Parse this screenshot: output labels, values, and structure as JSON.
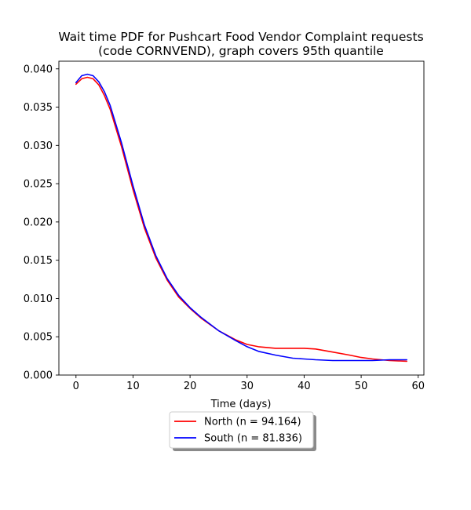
{
  "chart_data": {
    "type": "line",
    "title": "Wait time PDF for Pushcart Food Vendor Complaint  requests",
    "subtitle": "(code CORNVEND), graph covers 95th quantile",
    "xlabel": "Time (days)",
    "ylabel": "",
    "xlim": [
      -3,
      61
    ],
    "ylim": [
      0,
      0.041
    ],
    "xticks": [
      0,
      10,
      20,
      30,
      40,
      50,
      60
    ],
    "xtick_labels": [
      "0",
      "10",
      "20",
      "30",
      "40",
      "50",
      "60"
    ],
    "yticks": [
      0,
      0.005,
      0.01,
      0.015,
      0.02,
      0.025,
      0.03,
      0.035,
      0.04
    ],
    "ytick_labels": [
      "0.000",
      "0.005",
      "0.010",
      "0.015",
      "0.020",
      "0.025",
      "0.030",
      "0.035",
      "0.040"
    ],
    "grid": false,
    "legend_position": "below plot",
    "series": [
      {
        "name": "North (n = 94.164)",
        "color": "#ff0000",
        "x": [
          0,
          1,
          2,
          3,
          4,
          5,
          6,
          8,
          10,
          12,
          14,
          16,
          18,
          20,
          22,
          25,
          28,
          30,
          32,
          35,
          38,
          40,
          42,
          45,
          48,
          50,
          52,
          55,
          58
        ],
        "y": [
          0.038,
          0.0387,
          0.0389,
          0.0387,
          0.0379,
          0.0365,
          0.0347,
          0.0298,
          0.0242,
          0.0192,
          0.0153,
          0.0124,
          0.0102,
          0.0087,
          0.0074,
          0.0058,
          0.0046,
          0.004,
          0.0037,
          0.0035,
          0.0035,
          0.0035,
          0.0034,
          0.003,
          0.0026,
          0.0023,
          0.0021,
          0.0019,
          0.0018
        ]
      },
      {
        "name": "South (n = 81.836)",
        "color": "#0000ff",
        "x": [
          0,
          1,
          2,
          3,
          4,
          5,
          6,
          8,
          10,
          12,
          14,
          16,
          18,
          20,
          22,
          25,
          28,
          30,
          32,
          35,
          38,
          40,
          42,
          45,
          48,
          50,
          52,
          55,
          58
        ],
        "y": [
          0.0382,
          0.0391,
          0.0393,
          0.0391,
          0.0383,
          0.037,
          0.0352,
          0.0303,
          0.0247,
          0.0196,
          0.0156,
          0.0126,
          0.0104,
          0.0088,
          0.0075,
          0.0058,
          0.0045,
          0.0037,
          0.0031,
          0.0026,
          0.0022,
          0.0021,
          0.002,
          0.0019,
          0.0019,
          0.0019,
          0.0019,
          0.002,
          0.002
        ]
      }
    ]
  }
}
